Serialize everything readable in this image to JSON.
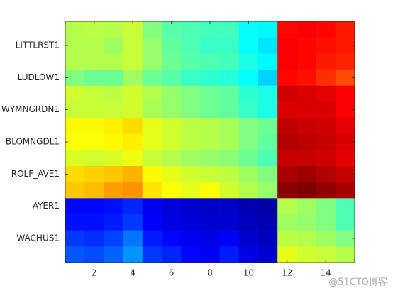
{
  "chart_data": {
    "type": "heatmap",
    "colormap": "jet",
    "clim": [
      0,
      1
    ],
    "xlim": [
      0.5,
      15.5
    ],
    "xticks": [
      2,
      4,
      6,
      8,
      10,
      12,
      14
    ],
    "ylim": [
      0.5,
      15.5
    ],
    "yticks": [
      {
        "value": 2,
        "label": "LITTLRST1"
      },
      {
        "value": 4,
        "label": "LUDLOW1"
      },
      {
        "value": 6,
        "label": "WYMNGRDN1"
      },
      {
        "value": 8,
        "label": "BLOMNGDL1"
      },
      {
        "value": 10,
        "label": "ROLF_AVE1"
      },
      {
        "value": 12,
        "label": "AYER1"
      },
      {
        "value": 14,
        "label": "WACHUS1"
      }
    ],
    "z": [
      [
        0.55,
        0.56,
        0.55,
        0.57,
        0.5,
        0.46,
        0.45,
        0.44,
        0.44,
        0.38,
        0.37,
        0.87,
        0.88,
        0.87,
        0.85
      ],
      [
        0.55,
        0.55,
        0.53,
        0.57,
        0.52,
        0.47,
        0.45,
        0.43,
        0.43,
        0.38,
        0.35,
        0.88,
        0.87,
        0.86,
        0.85
      ],
      [
        0.55,
        0.55,
        0.55,
        0.57,
        0.52,
        0.48,
        0.46,
        0.45,
        0.44,
        0.4,
        0.37,
        0.88,
        0.87,
        0.85,
        0.84
      ],
      [
        0.5,
        0.48,
        0.48,
        0.53,
        0.48,
        0.46,
        0.43,
        0.42,
        0.41,
        0.38,
        0.33,
        0.87,
        0.86,
        0.83,
        0.8
      ],
      [
        0.58,
        0.57,
        0.56,
        0.58,
        0.55,
        0.52,
        0.5,
        0.48,
        0.47,
        0.42,
        0.4,
        0.92,
        0.91,
        0.9,
        0.88
      ],
      [
        0.57,
        0.57,
        0.57,
        0.58,
        0.54,
        0.52,
        0.5,
        0.48,
        0.47,
        0.43,
        0.4,
        0.91,
        0.91,
        0.91,
        0.88
      ],
      [
        0.63,
        0.63,
        0.64,
        0.66,
        0.6,
        0.58,
        0.56,
        0.55,
        0.54,
        0.5,
        0.48,
        0.94,
        0.93,
        0.92,
        0.9
      ],
      [
        0.62,
        0.62,
        0.63,
        0.64,
        0.6,
        0.58,
        0.56,
        0.55,
        0.54,
        0.5,
        0.47,
        0.95,
        0.94,
        0.93,
        0.91
      ],
      [
        0.59,
        0.58,
        0.59,
        0.61,
        0.57,
        0.55,
        0.53,
        0.52,
        0.51,
        0.48,
        0.45,
        0.93,
        0.93,
        0.92,
        0.9
      ],
      [
        0.66,
        0.67,
        0.68,
        0.7,
        0.63,
        0.6,
        0.58,
        0.57,
        0.56,
        0.53,
        0.5,
        0.96,
        0.97,
        0.95,
        0.93
      ],
      [
        0.68,
        0.69,
        0.72,
        0.73,
        0.65,
        0.62,
        0.6,
        0.62,
        0.58,
        0.55,
        0.52,
        0.99,
        1.0,
        0.98,
        0.96
      ],
      [
        0.13,
        0.13,
        0.14,
        0.16,
        0.11,
        0.09,
        0.08,
        0.07,
        0.07,
        0.05,
        0.04,
        0.55,
        0.53,
        0.5,
        0.45
      ],
      [
        0.14,
        0.14,
        0.15,
        0.18,
        0.12,
        0.1,
        0.09,
        0.08,
        0.08,
        0.06,
        0.05,
        0.53,
        0.52,
        0.5,
        0.45
      ],
      [
        0.18,
        0.17,
        0.19,
        0.24,
        0.15,
        0.13,
        0.11,
        0.1,
        0.12,
        0.08,
        0.06,
        0.56,
        0.55,
        0.53,
        0.5
      ],
      [
        0.21,
        0.2,
        0.22,
        0.27,
        0.18,
        0.16,
        0.13,
        0.12,
        0.15,
        0.1,
        0.08,
        0.6,
        0.58,
        0.57,
        0.55
      ]
    ]
  },
  "watermark": "@51CTO博客"
}
